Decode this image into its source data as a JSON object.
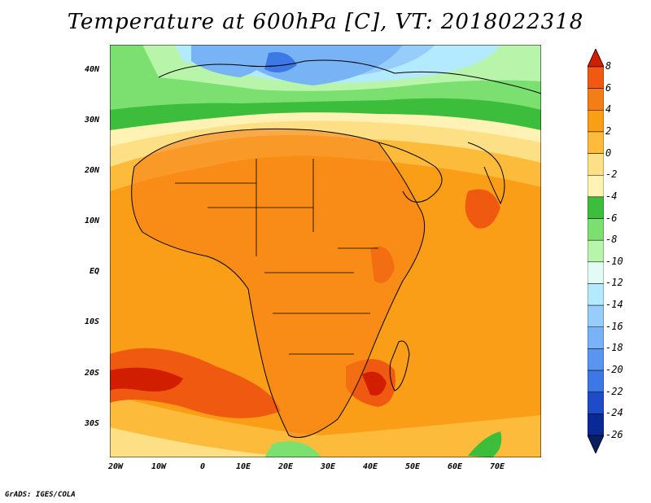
{
  "title": "Temperature at 600hPa [C], VT: 2018022318",
  "credit": "GrADS: IGES/COLA",
  "lat_labels": [
    "40N",
    "30N",
    "20N",
    "10N",
    "EQ",
    "10S",
    "20S",
    "30S"
  ],
  "lon_labels": [
    "20W",
    "10W",
    "0",
    "10E",
    "20E",
    "30E",
    "40E",
    "50E",
    "60E",
    "70E"
  ],
  "colorbar": {
    "labels": [
      "8",
      "6",
      "4",
      "2",
      "0",
      "-2",
      "-4",
      "-6",
      "-8",
      "-10",
      "-12",
      "-14",
      "-16",
      "-18",
      "-20",
      "-22",
      "-24",
      "-26"
    ],
    "colors": [
      "#d21e00",
      "#f05a10",
      "#f57d15",
      "#fa9e18",
      "#fdbb3c",
      "#fde085",
      "#fff2b4",
      "#3cbd3c",
      "#7be070",
      "#b8f5aa",
      "#e2fbf5",
      "#b4eafd",
      "#96cdfa",
      "#78b4f5",
      "#5a96f0",
      "#3c78e6",
      "#1e4bc8",
      "#0a2896",
      "#082060"
    ]
  },
  "colors": {
    "ocean_warm": "#fa9e18",
    "land_warm": "#f57d15",
    "hot": "#f05a10",
    "cold_blue": "#96cdfa",
    "green": "#3cbd3c"
  }
}
